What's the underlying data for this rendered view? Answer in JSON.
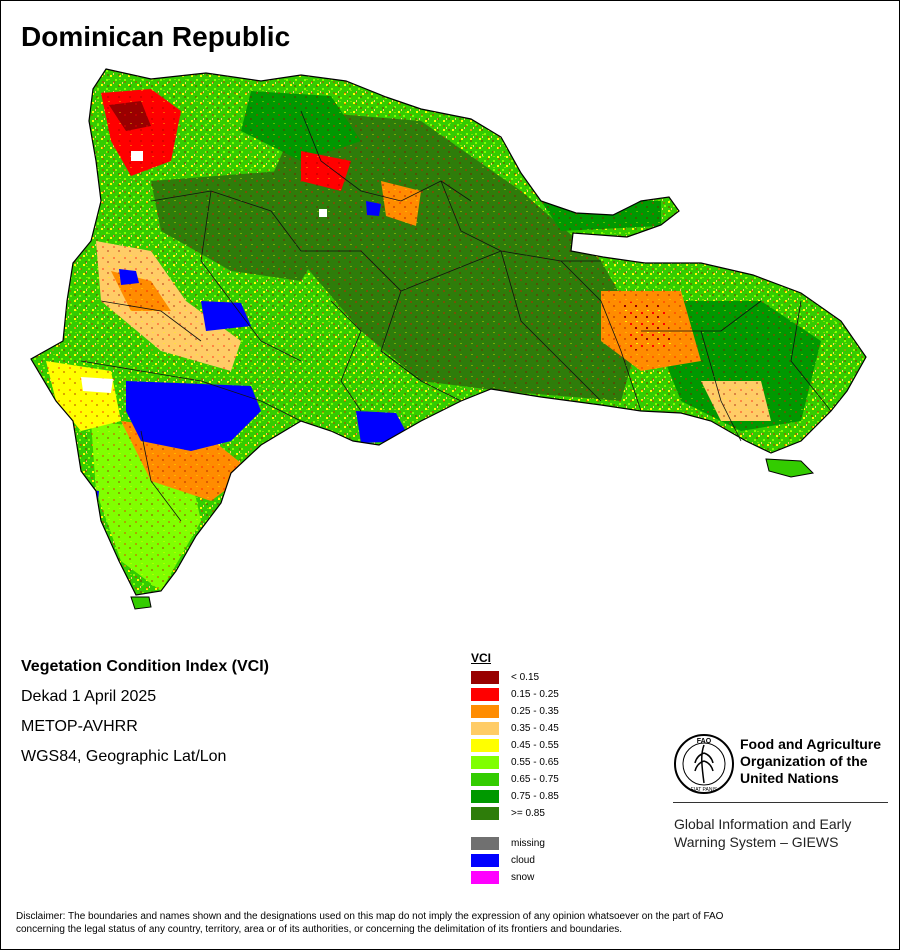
{
  "title": "Dominican Republic",
  "info": {
    "index_name": "Vegetation Condition Index (VCI)",
    "period": "Dekad 1 April 2025",
    "sensor": "METOP-AVHRR",
    "projection": "WGS84, Geographic Lat/Lon"
  },
  "legend": {
    "title": "VCI",
    "classes": [
      {
        "label": "< 0.15",
        "color": "#990000"
      },
      {
        "label": "0.15 - 0.25",
        "color": "#ff0000"
      },
      {
        "label": "0.25 - 0.35",
        "color": "#ff8c00"
      },
      {
        "label": "0.35 - 0.45",
        "color": "#ffcc66"
      },
      {
        "label": "0.45 - 0.55",
        "color": "#ffff00"
      },
      {
        "label": "0.55 - 0.65",
        "color": "#80ff00"
      },
      {
        "label": "0.65 - 0.75",
        "color": "#33cc00"
      },
      {
        "label": "0.75 - 0.85",
        "color": "#009900"
      },
      {
        "label": ">= 0.85",
        "color": "#2e7d0a"
      }
    ],
    "special": [
      {
        "label": "missing",
        "color": "#707070"
      },
      {
        "label": "cloud",
        "color": "#0000ff"
      },
      {
        "label": "snow",
        "color": "#ff00ff"
      }
    ]
  },
  "organization": {
    "name_line1": "Food and Agriculture",
    "name_line2": "Organization of the",
    "name_line3": "United Nations",
    "logo_letters": "FAO",
    "logo_motto": "FIAT PANIS",
    "system_line1": "Global Information and Early",
    "system_line2": "Warning System – GIEWS"
  },
  "disclaimer_line1": "Disclaimer: The boundaries and names shown and the designations used on this map do not imply the expression of any opinion whatsoever on the part of FAO",
  "disclaimer_line2": "concerning the legal status of any country, territory, area or of its authorities, or concerning the delimitation of its frontiers and boundaries."
}
